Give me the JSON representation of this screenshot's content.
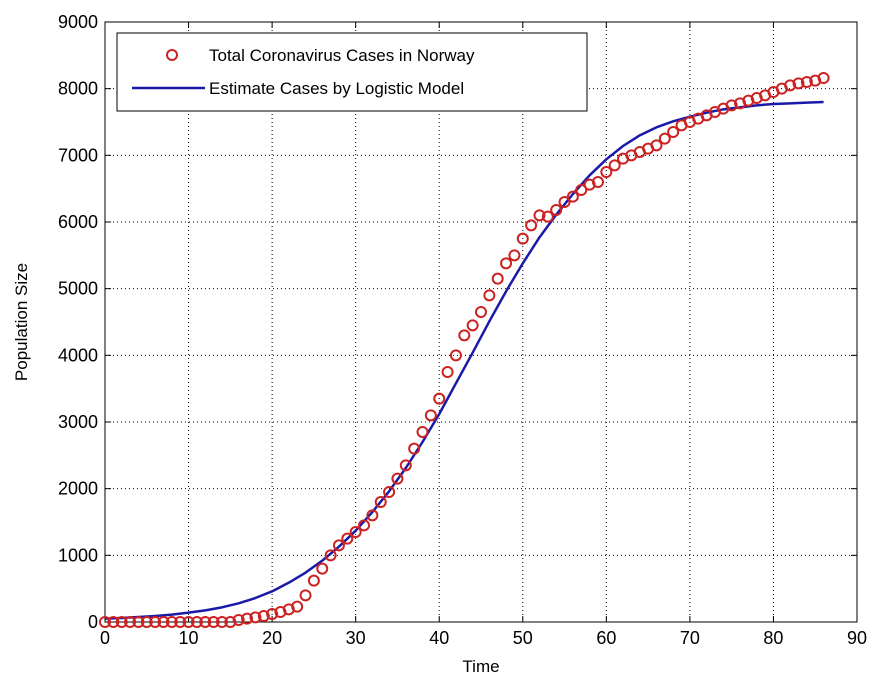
{
  "chart_data": {
    "type": "scatter",
    "title": "",
    "xlabel": "Time",
    "ylabel": "Population Size",
    "xlim": [
      0,
      90
    ],
    "ylim": [
      0,
      9000
    ],
    "xticks": [
      "0",
      "10",
      "20",
      "30",
      "40",
      "50",
      "60",
      "70",
      "80",
      "90"
    ],
    "yticks": [
      "0",
      "1000",
      "2000",
      "3000",
      "4000",
      "5000",
      "6000",
      "7000",
      "8000",
      "9000"
    ],
    "grid": true,
    "legend_position": "top-left",
    "series": [
      {
        "name": "Total Coronavirus Cases in Norway",
        "kind": "markers",
        "marker": "circle",
        "color": "#cc2222",
        "x": [
          0,
          1,
          2,
          3,
          4,
          5,
          6,
          7,
          8,
          9,
          10,
          11,
          12,
          13,
          14,
          15,
          16,
          17,
          18,
          19,
          20,
          21,
          22,
          23,
          24,
          25,
          26,
          27,
          28,
          29,
          30,
          31,
          32,
          33,
          34,
          35,
          36,
          37,
          38,
          39,
          40,
          41,
          42,
          43,
          44,
          45,
          46,
          47,
          48,
          49,
          50,
          51,
          52,
          53,
          54,
          55,
          56,
          57,
          58,
          59,
          60,
          61,
          62,
          63,
          64,
          65,
          66,
          67,
          68,
          69,
          70,
          71,
          72,
          73,
          74,
          75,
          76,
          77,
          78,
          79,
          80,
          81,
          82,
          83,
          84,
          85,
          86
        ],
        "y": [
          0,
          0,
          0,
          0,
          0,
          0,
          0,
          0,
          0,
          0,
          0,
          0,
          0,
          0,
          0,
          0,
          30,
          50,
          70,
          90,
          120,
          150,
          190,
          230,
          400,
          620,
          800,
          1000,
          1150,
          1250,
          1350,
          1450,
          1600,
          1800,
          1950,
          2150,
          2350,
          2600,
          2850,
          3100,
          3350,
          3750,
          4000,
          4300,
          4450,
          4650,
          4900,
          5150,
          5380,
          5500,
          5750,
          5950,
          6100,
          6080,
          6180,
          6300,
          6380,
          6480,
          6560,
          6600,
          6750,
          6850,
          6950,
          7000,
          7050,
          7100,
          7150,
          7250,
          7350,
          7450,
          7500,
          7550,
          7600,
          7650,
          7700,
          7750,
          7780,
          7820,
          7860,
          7900,
          7950,
          8000,
          8050,
          8080,
          8100,
          8120,
          8160
        ]
      },
      {
        "name": "Estimate Cases by Logistic Model",
        "kind": "line",
        "color": "#1a1aa8",
        "x": [
          0,
          2,
          4,
          6,
          8,
          10,
          12,
          14,
          16,
          18,
          20,
          22,
          24,
          26,
          28,
          30,
          32,
          34,
          36,
          38,
          40,
          42,
          44,
          46,
          48,
          50,
          52,
          54,
          56,
          58,
          60,
          62,
          64,
          66,
          68,
          70,
          72,
          74,
          76,
          78,
          80,
          82,
          84,
          86
        ],
        "y": [
          50,
          60,
          75,
          90,
          110,
          140,
          175,
          220,
          280,
          360,
          460,
          590,
          740,
          920,
          1130,
          1370,
          1650,
          1960,
          2310,
          2700,
          3120,
          3580,
          4040,
          4510,
          4960,
          5380,
          5770,
          6110,
          6420,
          6700,
          6940,
          7140,
          7300,
          7420,
          7510,
          7580,
          7640,
          7690,
          7720,
          7750,
          7770,
          7780,
          7790,
          7800
        ]
      }
    ]
  }
}
